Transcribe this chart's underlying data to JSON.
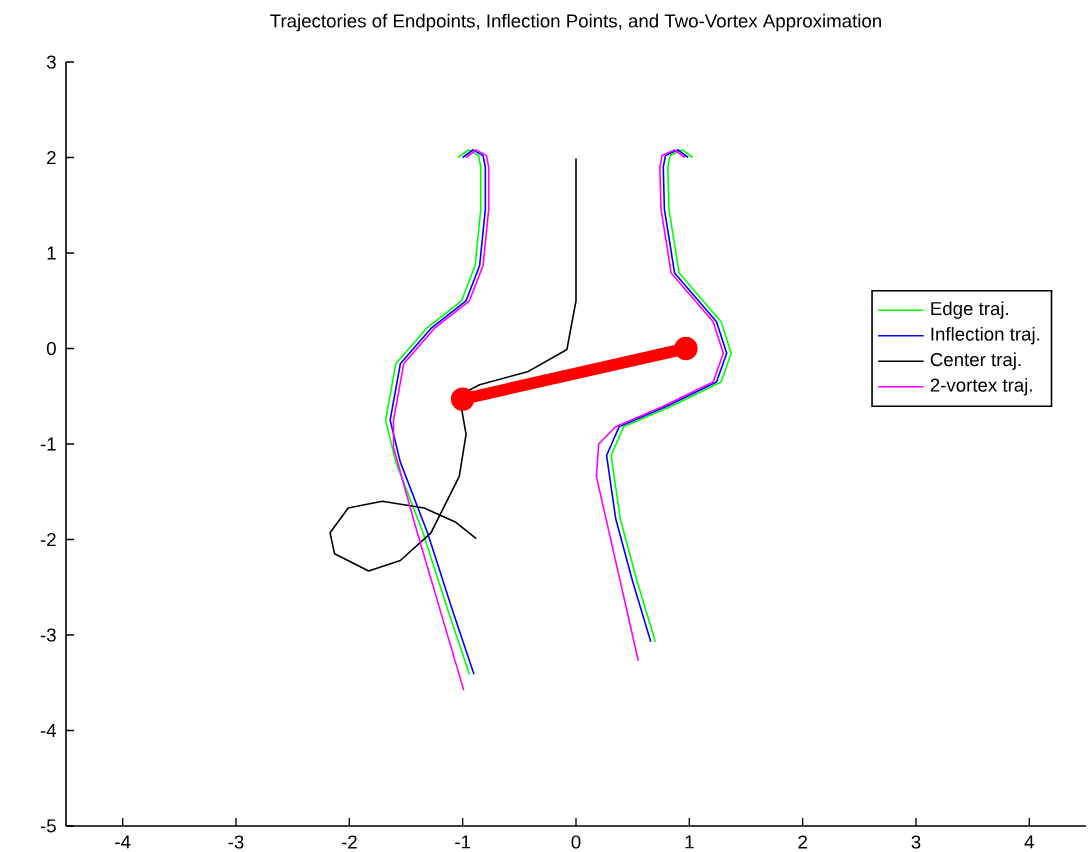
{
  "chart_data": {
    "type": "line",
    "title": "Trajectories of Endpoints, Inflection Points, and Two-Vortex Approximation",
    "xlim": [
      -4.5,
      4.5
    ],
    "ylim": [
      -5,
      3
    ],
    "xticks": [
      -4,
      -3,
      -2,
      -1,
      0,
      1,
      2,
      3,
      4
    ],
    "yticks": [
      -5,
      -4,
      -3,
      -2,
      -1,
      0,
      1,
      2,
      3
    ],
    "grid": false,
    "legend": "right",
    "series": [
      {
        "name": "Edge traj.",
        "color": "#00ff00",
        "x": [
          -1.04,
          -0.95,
          -0.86,
          -0.84,
          -0.84,
          -0.89,
          -1.01,
          -1.32,
          -1.59,
          -1.68,
          -1.59,
          -1.35,
          -1.13,
          -0.94,
          null,
          1.03,
          0.94,
          0.83,
          0.81,
          0.82,
          0.91,
          1.28,
          1.37,
          1.28,
          0.85,
          0.42,
          0.31,
          0.39,
          0.54,
          0.7
        ],
        "values": [
          2.0,
          2.08,
          2.02,
          1.9,
          1.46,
          0.87,
          0.5,
          0.21,
          -0.16,
          -0.75,
          -1.19,
          -1.93,
          -2.74,
          -3.41,
          null,
          2.0,
          2.08,
          2.02,
          1.9,
          1.46,
          0.79,
          0.28,
          -0.05,
          -0.35,
          -0.6,
          -0.82,
          -1.12,
          -1.78,
          -2.44,
          -3.07
        ]
      },
      {
        "name": "Inflection traj.",
        "color": "#0000ff",
        "x": [
          -1.0,
          -0.91,
          -0.82,
          -0.8,
          -0.8,
          -0.85,
          -0.97,
          -1.28,
          -1.55,
          -1.64,
          -1.55,
          -1.31,
          -1.09,
          -0.9,
          null,
          0.99,
          0.9,
          0.79,
          0.77,
          0.78,
          0.87,
          1.24,
          1.33,
          1.24,
          0.81,
          0.38,
          0.27,
          0.35,
          0.5,
          0.66
        ],
        "values": [
          2.0,
          2.08,
          2.02,
          1.9,
          1.46,
          0.87,
          0.5,
          0.21,
          -0.16,
          -0.75,
          -1.19,
          -1.93,
          -2.74,
          -3.41,
          null,
          2.0,
          2.08,
          2.02,
          1.9,
          1.46,
          0.79,
          0.28,
          -0.05,
          -0.35,
          -0.6,
          -0.82,
          -1.12,
          -1.78,
          -2.44,
          -3.07
        ]
      },
      {
        "name": "Center traj.",
        "color": "#000000",
        "x": [
          0.0,
          0.0,
          -0.08,
          -0.42,
          -0.85,
          -1.03,
          -0.97,
          -1.03,
          -1.28,
          -1.55,
          -1.83,
          -2.13,
          -2.17,
          -2.01,
          -1.71,
          -1.34,
          -1.06,
          -0.88
        ],
        "values": [
          1.99,
          0.5,
          -0.01,
          -0.24,
          -0.38,
          -0.49,
          -0.9,
          -1.34,
          -1.93,
          -2.22,
          -2.33,
          -2.15,
          -1.93,
          -1.67,
          -1.6,
          -1.67,
          -1.82,
          -1.99
        ]
      },
      {
        "name": "2-vortex traj.",
        "color": "#ff00ff",
        "x": [
          -0.97,
          -0.88,
          -0.79,
          -0.77,
          -0.77,
          -0.82,
          -0.94,
          -1.25,
          -1.52,
          -1.61,
          -1.61,
          -1.4,
          -0.99,
          null,
          0.96,
          0.87,
          0.76,
          0.74,
          0.75,
          0.84,
          1.21,
          1.3,
          1.21,
          0.78,
          0.35,
          0.2,
          0.18,
          0.55
        ],
        "values": [
          2.0,
          2.08,
          2.02,
          1.9,
          1.46,
          0.87,
          0.5,
          0.21,
          -0.16,
          -0.75,
          -1.04,
          -1.93,
          -3.58,
          null,
          2.0,
          2.08,
          2.02,
          1.9,
          1.46,
          0.79,
          0.28,
          -0.05,
          -0.35,
          -0.6,
          -0.82,
          -1.0,
          -1.34,
          -3.27
        ]
      },
      {
        "color": "#ff0000",
        "marker": "circle",
        "x": [
          -1.0,
          0.97
        ],
        "values": [
          -0.53,
          0.0
        ]
      }
    ]
  }
}
